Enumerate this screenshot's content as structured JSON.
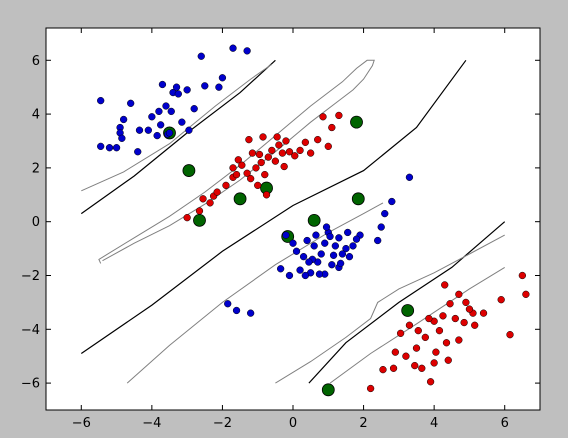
{
  "chart_data": {
    "type": "scatter",
    "title": "",
    "xlabel": "",
    "ylabel": "",
    "xlim": [
      -7,
      7
    ],
    "ylim": [
      -7,
      7.2
    ],
    "grid": false,
    "xticks": [
      -6,
      -4,
      -2,
      0,
      2,
      4,
      6
    ],
    "xtick_labels": [
      "−6",
      "−4",
      "−2",
      "0",
      "2",
      "4",
      "6"
    ],
    "yticks": [
      -6,
      -4,
      -2,
      0,
      2,
      4,
      6
    ],
    "ytick_labels": [
      "−6",
      "−4",
      "−2",
      "0",
      "2",
      "4",
      "6"
    ],
    "colors": {
      "figure_background": "#bfbfbf",
      "axes_background": "#ffffff",
      "class_a": "#0000cc",
      "class_b": "#dd0000",
      "support_vector_ring": "#006400",
      "boundary": "#000000",
      "margin": "#808080"
    },
    "series": [
      {
        "color": "#0000cc",
        "points": [
          [
            -5.45,
            4.5
          ],
          [
            -4.8,
            3.8
          ],
          [
            -4.9,
            3.5
          ],
          [
            -4.6,
            4.4
          ],
          [
            -4.35,
            3.4
          ],
          [
            -4.1,
            3.4
          ],
          [
            -4.0,
            3.9
          ],
          [
            -3.8,
            4.1
          ],
          [
            -3.75,
            3.6
          ],
          [
            -3.6,
            4.3
          ],
          [
            -3.45,
            4.1
          ],
          [
            -3.4,
            4.8
          ],
          [
            -3.3,
            5.0
          ],
          [
            -3.25,
            4.75
          ],
          [
            -3.7,
            5.1
          ],
          [
            -3.0,
            4.9
          ],
          [
            -2.6,
            6.15
          ],
          [
            -2.5,
            5.05
          ],
          [
            -2.1,
            5.0
          ],
          [
            -2.0,
            5.35
          ],
          [
            -1.7,
            6.45
          ],
          [
            -1.3,
            6.35
          ],
          [
            -3.85,
            3.2
          ],
          [
            -3.55,
            3.25
          ],
          [
            -3.15,
            3.7
          ],
          [
            -2.8,
            4.2
          ],
          [
            -5.45,
            2.8
          ],
          [
            -5.2,
            2.75
          ],
          [
            -5.0,
            2.75
          ],
          [
            -4.9,
            3.3
          ],
          [
            -4.85,
            3.1
          ],
          [
            -4.4,
            2.6
          ],
          [
            -2.95,
            3.4
          ],
          [
            -3.5,
            3.3
          ],
          [
            3.3,
            1.65
          ],
          [
            2.8,
            0.75
          ],
          [
            2.6,
            0.3
          ],
          [
            2.5,
            -0.2
          ],
          [
            2.4,
            -0.7
          ],
          [
            1.9,
            -0.5
          ],
          [
            1.7,
            -0.9
          ],
          [
            1.5,
            -1.0
          ],
          [
            1.4,
            -1.2
          ],
          [
            1.3,
            -0.6
          ],
          [
            1.2,
            -0.9
          ],
          [
            1.0,
            -0.4
          ],
          [
            0.9,
            -0.8
          ],
          [
            0.8,
            -1.2
          ],
          [
            0.7,
            -1.5
          ],
          [
            0.6,
            -0.9
          ],
          [
            0.5,
            -1.9
          ],
          [
            0.3,
            -1.3
          ],
          [
            0.2,
            -1.8
          ],
          [
            0.1,
            -1.1
          ],
          [
            0.0,
            -0.8
          ],
          [
            -0.2,
            -0.5
          ],
          [
            1.1,
            -1.6
          ],
          [
            1.3,
            -1.7
          ],
          [
            0.9,
            -1.95
          ],
          [
            1.6,
            -1.3
          ],
          [
            0.4,
            -0.7
          ],
          [
            0.55,
            -1.4
          ],
          [
            1.05,
            -0.55
          ],
          [
            1.55,
            -0.4
          ],
          [
            0.75,
            -1.95
          ],
          [
            0.45,
            -1.5
          ],
          [
            1.35,
            -1.55
          ],
          [
            1.8,
            -0.65
          ],
          [
            0.95,
            -0.2
          ],
          [
            0.65,
            -0.5
          ],
          [
            1.15,
            -1.25
          ],
          [
            0.35,
            -2.0
          ],
          [
            -0.35,
            -1.75
          ],
          [
            -0.1,
            -2.0
          ],
          [
            -1.85,
            -3.05
          ],
          [
            -1.6,
            -3.3
          ],
          [
            -1.2,
            -3.4
          ]
        ]
      },
      {
        "color": "#dd0000",
        "points": [
          [
            -3.0,
            0.15
          ],
          [
            -2.65,
            0.4
          ],
          [
            -2.35,
            0.7
          ],
          [
            -2.25,
            0.95
          ],
          [
            -2.15,
            1.1
          ],
          [
            -1.9,
            1.35
          ],
          [
            -1.7,
            1.65
          ],
          [
            -1.6,
            1.75
          ],
          [
            -1.55,
            2.3
          ],
          [
            -1.45,
            2.1
          ],
          [
            -1.3,
            1.8
          ],
          [
            -1.2,
            1.6
          ],
          [
            -1.15,
            2.55
          ],
          [
            -1.05,
            2.0
          ],
          [
            -0.9,
            2.2
          ],
          [
            -0.8,
            1.75
          ],
          [
            -0.7,
            2.4
          ],
          [
            -0.6,
            2.65
          ],
          [
            -0.5,
            2.25
          ],
          [
            -0.4,
            2.85
          ],
          [
            -0.3,
            2.55
          ],
          [
            -0.2,
            3.0
          ],
          [
            -0.1,
            2.6
          ],
          [
            0.05,
            2.45
          ],
          [
            0.2,
            2.65
          ],
          [
            0.35,
            2.95
          ],
          [
            0.5,
            2.55
          ],
          [
            0.7,
            3.05
          ],
          [
            0.85,
            3.9
          ],
          [
            1.1,
            3.5
          ],
          [
            1.0,
            2.8
          ],
          [
            1.3,
            3.95
          ],
          [
            -1.25,
            3.05
          ],
          [
            -0.85,
            3.15
          ],
          [
            -0.45,
            3.15
          ],
          [
            -1.7,
            2.0
          ],
          [
            -1.0,
            1.35
          ],
          [
            -0.75,
            1.0
          ],
          [
            -2.55,
            0.85
          ],
          [
            -0.25,
            2.05
          ],
          [
            -0.95,
            2.5
          ],
          [
            4.3,
            -2.35
          ],
          [
            4.7,
            -2.7
          ],
          [
            4.45,
            -3.05
          ],
          [
            4.9,
            -3.0
          ],
          [
            5.1,
            -3.4
          ],
          [
            5.4,
            -3.4
          ],
          [
            4.25,
            -3.5
          ],
          [
            4.6,
            -3.6
          ],
          [
            4.85,
            -3.75
          ],
          [
            5.15,
            -3.85
          ],
          [
            4.0,
            -3.7
          ],
          [
            4.15,
            -4.05
          ],
          [
            4.35,
            -4.5
          ],
          [
            4.7,
            -4.4
          ],
          [
            3.75,
            -4.3
          ],
          [
            3.5,
            -4.7
          ],
          [
            3.3,
            -3.85
          ],
          [
            3.05,
            -4.15
          ],
          [
            2.9,
            -4.85
          ],
          [
            3.2,
            -5.0
          ],
          [
            3.65,
            -5.45
          ],
          [
            3.9,
            -5.95
          ],
          [
            4.0,
            -5.25
          ],
          [
            4.4,
            -5.15
          ],
          [
            2.55,
            -5.5
          ],
          [
            2.2,
            -6.2
          ],
          [
            5.9,
            -2.9
          ],
          [
            6.5,
            -2.0
          ],
          [
            6.6,
            -2.7
          ],
          [
            6.15,
            -4.2
          ],
          [
            3.55,
            -4.05
          ],
          [
            3.85,
            -3.6
          ],
          [
            4.05,
            -4.85
          ],
          [
            3.45,
            -5.35
          ],
          [
            2.85,
            -5.45
          ],
          [
            5.0,
            -3.25
          ]
        ]
      }
    ],
    "support_vectors": [
      [
        -3.5,
        3.3
      ],
      [
        -2.95,
        1.9
      ],
      [
        -2.65,
        0.05
      ],
      [
        -1.5,
        0.85
      ],
      [
        -0.75,
        1.25
      ],
      [
        1.8,
        3.7
      ],
      [
        -0.15,
        -0.55
      ],
      [
        0.6,
        0.05
      ],
      [
        1.85,
        0.85
      ],
      [
        3.25,
        -3.3
      ],
      [
        1.0,
        -6.25
      ]
    ],
    "boundary_lines": [
      {
        "style": "solid",
        "points": [
          [
            -6.0,
            0.3
          ],
          [
            -4.5,
            1.7
          ],
          [
            -3.0,
            3.3
          ],
          [
            -1.5,
            4.8
          ],
          [
            -0.5,
            6.0
          ]
        ]
      },
      {
        "style": "solid",
        "points": [
          [
            -6.0,
            -4.9
          ],
          [
            -4.0,
            -3.1
          ],
          [
            -2.0,
            -1.1
          ],
          [
            0.0,
            0.6
          ],
          [
            2.0,
            1.9
          ],
          [
            3.5,
            3.5
          ],
          [
            4.9,
            6.0
          ]
        ]
      },
      {
        "style": "solid",
        "points": [
          [
            0.45,
            -6.0
          ],
          [
            1.5,
            -4.5
          ],
          [
            3.0,
            -3.0
          ],
          [
            4.5,
            -1.7
          ],
          [
            6.0,
            0.0
          ]
        ]
      },
      {
        "style": "margin",
        "points": [
          [
            -6.0,
            1.15
          ],
          [
            -4.8,
            1.85
          ],
          [
            -3.5,
            2.9
          ],
          [
            -2.2,
            4.3
          ],
          [
            -1.2,
            5.3
          ],
          [
            -0.6,
            5.85
          ]
        ]
      },
      {
        "style": "margin",
        "points": [
          [
            -5.4,
            -1.45
          ],
          [
            -4.5,
            -0.8
          ],
          [
            -3.5,
            -0.15
          ],
          [
            -2.5,
            0.65
          ],
          [
            -1.5,
            1.55
          ],
          [
            -0.5,
            2.6
          ],
          [
            0.5,
            3.7
          ],
          [
            1.3,
            4.5
          ],
          [
            1.7,
            4.9
          ],
          [
            2.0,
            5.3
          ],
          [
            2.25,
            5.8
          ],
          [
            2.3,
            6.0
          ],
          [
            2.1,
            6.0
          ],
          [
            1.8,
            5.7
          ],
          [
            1.4,
            5.2
          ],
          [
            0.5,
            4.3
          ],
          [
            -0.5,
            3.2
          ],
          [
            -1.5,
            2.1
          ],
          [
            -2.5,
            1.1
          ],
          [
            -3.5,
            0.2
          ],
          [
            -4.5,
            -0.6
          ],
          [
            -5.5,
            -1.4
          ],
          [
            -5.45,
            -1.55
          ]
        ]
      },
      {
        "style": "margin",
        "points": [
          [
            -4.7,
            -6.0
          ],
          [
            -3.5,
            -4.6
          ],
          [
            -2.0,
            -3.0
          ],
          [
            -0.5,
            -1.6
          ],
          [
            1.0,
            -0.4
          ],
          [
            2.0,
            0.3
          ],
          [
            2.55,
            0.7
          ]
        ]
      },
      {
        "style": "margin",
        "points": [
          [
            -0.5,
            -6.0
          ],
          [
            0.5,
            -5.2
          ],
          [
            1.5,
            -4.3
          ],
          [
            2.2,
            -3.6
          ],
          [
            2.4,
            -3.0
          ],
          [
            3.0,
            -2.5
          ],
          [
            4.0,
            -1.9
          ],
          [
            5.0,
            -1.2
          ],
          [
            6.0,
            -0.5
          ]
        ]
      },
      {
        "style": "margin",
        "points": [
          [
            1.05,
            -6.0
          ],
          [
            2.2,
            -4.9
          ],
          [
            3.5,
            -3.8
          ],
          [
            5.0,
            -2.5
          ],
          [
            6.0,
            -1.7
          ]
        ]
      }
    ]
  }
}
